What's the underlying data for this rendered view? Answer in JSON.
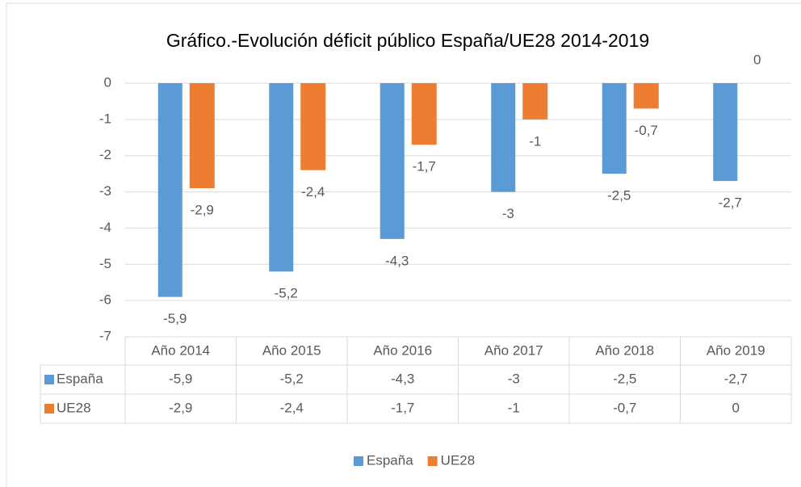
{
  "chart_data": {
    "type": "bar",
    "title": "Gráfico.-Evolución déficit público España/UE28 2014-2019",
    "categories": [
      "Año 2014",
      "Año 2015",
      "Año 2016",
      "Año 2017",
      "Año 2018",
      "Año 2019"
    ],
    "series": [
      {
        "name": "España",
        "color": "#5b9bd5",
        "values": [
          -5.9,
          -5.2,
          -4.3,
          -3,
          -2.5,
          -2.7
        ],
        "value_labels": [
          "-5,9",
          "-5,2",
          "-4,3",
          "-3",
          "-2,5",
          "-2,7"
        ]
      },
      {
        "name": "UE28",
        "color": "#ed7d31",
        "values": [
          -2.9,
          -2.4,
          -1.7,
          -1,
          -0.7,
          0
        ],
        "value_labels": [
          "-2,9",
          "-2,4",
          "-1,7",
          "-1",
          "-0,7",
          "0"
        ]
      }
    ],
    "ylim": [
      -7,
      0
    ],
    "yticks": [
      0,
      -1,
      -2,
      -3,
      -4,
      -5,
      -6,
      -7
    ],
    "grid": true,
    "legend": "bottom",
    "data_table": true
  }
}
